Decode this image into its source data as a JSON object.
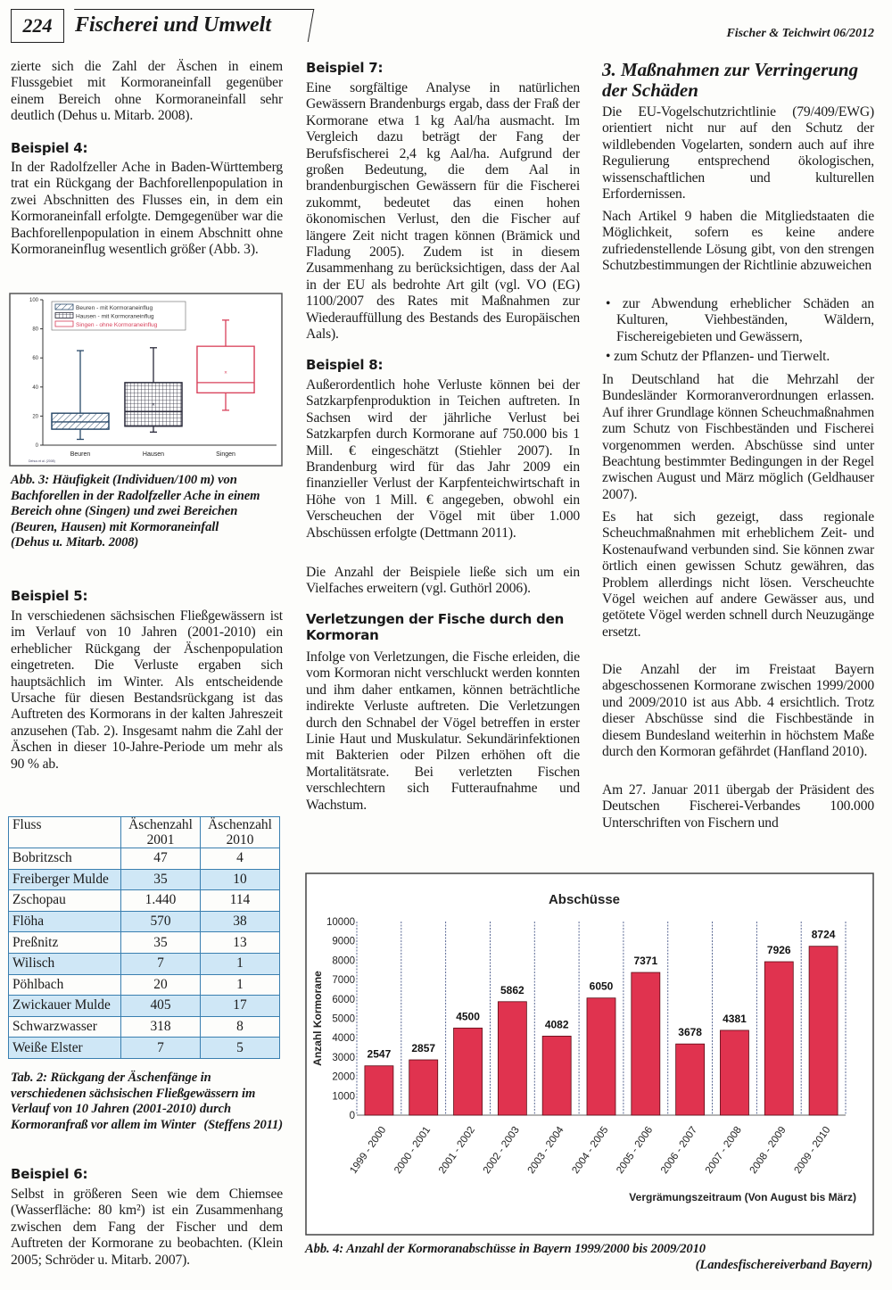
{
  "header": {
    "page_number": "224",
    "section": "Fischerei und Umwelt",
    "journal": "Fischer & Teichwirt 06/2012"
  },
  "col1": {
    "p1": "zierte sich die Zahl der Äschen in einem Flussgebiet mit Kormoraneinfall gegenüber einem Bereich ohne Kormoraneinfall sehr deutlich (Dehus u. Mitarb. 2008).",
    "h4": "Beispiel 4:",
    "p4": "In der Radolfzeller Ache in Baden-Württemberg trat ein Rückgang der Bachforellenpopulation in zwei Abschnitten des Flusses ein, in dem ein Kormoraneinfall erfolgte. Demgegenüber war die Bachforellenpopulation in einem Abschnitt ohne Kormoraneinflug wesentlich größer (Abb. 3).",
    "fig3_caption": "Abb. 3: Häufigkeit (Individuen/100 m) von Bachforellen in der Radolfzeller Ache in einem Bereich ohne (Singen) und zwei Bereichen (Beuren, Hausen) mit Kormoraneinfall",
    "fig3_source": "(Dehus u. Mitarb. 2008)",
    "h5": "Beispiel 5:",
    "p5": "In verschiedenen sächsischen Fließgewässern ist im Verlauf von 10 Jahren (2001-2010) ein erheblicher Rückgang der Äschenpopulation eingetreten. Die Verluste ergaben sich hauptsächlich im Winter. Als entscheidende Ursache für diesen Bestandsrückgang ist das Auftreten des Kormorans in der kalten Jahreszeit anzusehen (Tab. 2). Insgesamt nahm die Zahl der Äschen in dieser 10-Jahre-Periode um mehr als 90 % ab.",
    "tab2_caption": "Tab. 2: Rückgang der Äschenfänge in verschiedenen sächsischen Fließgewässern im Verlauf von 10 Jahren (2001-2010) durch Kormoranfraß vor allem im Winter",
    "tab2_source": "(Steffens 2011)",
    "h6": "Beispiel 6:",
    "p6": "Selbst in größeren Seen wie dem Chiemsee (Wasserfläche: 80 km²) ist ein Zusammenhang zwischen dem Fang der Fischer und dem Auftreten der Kormorane zu beobachten. (Klein 2005; Schröder u. Mitarb. 2007)."
  },
  "table": {
    "headers": [
      "Fluss",
      "Äschenzahl 2001",
      "Äschenzahl 2010"
    ],
    "rows": [
      [
        "Bobritzsch",
        "47",
        "4"
      ],
      [
        "Freiberger Mulde",
        "35",
        "10"
      ],
      [
        "Zschopau",
        "1.440",
        "114"
      ],
      [
        "Flöha",
        "570",
        "38"
      ],
      [
        "Preßnitz",
        "35",
        "13"
      ],
      [
        "Wilisch",
        "7",
        "1"
      ],
      [
        "Pöhlbach",
        "20",
        "1"
      ],
      [
        "Zwickauer Mulde",
        "405",
        "17"
      ],
      [
        "Schwarzwasser",
        "318",
        "8"
      ],
      [
        "Weiße Elster",
        "7",
        "5"
      ]
    ],
    "highlight_color": "#cfe7f6"
  },
  "col2": {
    "h7": "Beispiel 7:",
    "p7": "Eine sorgfältige Analyse in natürlichen Gewässern Brandenburgs ergab, dass der Fraß der Kormorane etwa 1 kg Aal/ha ausmacht. Im Vergleich dazu beträgt der Fang der Berufsfischerei 2,4 kg Aal/ha. Aufgrund der großen Bedeutung, die dem Aal in brandenburgischen Gewässern für die Fischerei zukommt, bedeutet das einen hohen ökonomischen Verlust, den die Fischer auf längere Zeit nicht tragen können (Brämick und Fladung 2005). Zudem ist in diesem Zusammenhang zu berücksichtigen, dass der Aal in der EU als bedrohte Art gilt (vgl. VO (EG) 1100/2007 des Rates mit Maßnahmen zur Wiederauffüllung des Bestands des Europäischen Aals).",
    "h8": "Beispiel 8:",
    "p8": "Außerordentlich hohe Verluste können bei der Satzkarpfenproduktion in Teichen auftreten. In Sachsen wird der jährliche Verlust bei Satzkarpfen durch Kormorane auf 750.000 bis 1 Mill. € eingeschätzt (Stiehler 2007). In Brandenburg wird für das Jahr 2009 ein finanzieller Verlust der Karpfenteichwirtschaft in Höhe von 1 Mill. € angegeben, obwohl ein Verscheuchen der Vögel mit über 1.000 Abschüssen erfolgte (Dettmann 2011).",
    "p8b": "Die Anzahl der Beispiele ließe sich um ein Vielfaches erweitern (vgl. Guthörl 2006).",
    "h_injuries": "Verletzungen der Fische durch den Kormoran",
    "p_injuries": "Infolge von Verletzungen, die Fische erleiden, die vom Kormoran nicht verschluckt werden konnten und ihm daher entkamen, können beträchtliche indirekte Verluste auftreten. Die Verletzungen durch den Schnabel der Vögel betreffen in erster Linie Haut und Muskulatur. Sekundärinfektionen mit Bakterien oder Pilzen erhöhen oft die Mortalitätsrate. Bei verletzten Fischen verschlechtern sich Futteraufnahme und Wachstum."
  },
  "col3": {
    "heading": "3. Maßnahmen zur Verringerung der Schäden",
    "p1": "Die EU-Vogelschutzrichtlinie (79/409/EWG) orientiert nicht nur auf den Schutz der wildlebenden Vogelarten, sondern auch auf ihre Regulierung entsprechend ökologischen, wissenschaftlichen und kulturellen Erfordernissen.",
    "p2": "Nach Artikel 9 haben die Mitgliedstaaten die Möglichkeit, sofern es keine andere zufriedenstellende Lösung gibt, von den strengen Schutzbestimmungen der Richtlinie abzuweichen",
    "bullets": [
      "zur Abwendung erheblicher Schäden an Kulturen, Viehbeständen, Wäldern, Fischereigebieten und Gewässern,",
      "zum Schutz der Pflanzen- und Tierwelt."
    ],
    "p3": "In Deutschland hat die Mehrzahl der Bundesländer Kormoranverordnungen erlassen. Auf ihrer Grundlage können Scheuchmaßnahmen zum Schutz von Fischbeständen und Fischerei vorgenommen werden. Abschüsse sind unter Beachtung bestimmter Bedingungen in der Regel zwischen August und März möglich (Geldhauser 2007).",
    "p4": "Es hat sich gezeigt, dass regionale Scheuchmaßnahmen mit erheblichem Zeit- und Kostenaufwand verbunden sind. Sie können zwar örtlich einen gewissen Schutz gewähren, das Problem allerdings nicht lösen. Verscheuchte Vögel weichen auf andere Gewässer aus, und getötete Vögel werden schnell durch Neuzugänge ersetzt.",
    "p5": "Die Anzahl der im Freistaat Bayern abgeschossenen Kormorane zwischen 1999/2000 und 2009/2010 ist aus Abb. 4 ersichtlich. Trotz dieser Abschüsse sind die Fischbestände in diesem Bundesland weiterhin in höchstem Maße durch den Kormoran gefährdet (Hanfland 2010).",
    "p6": "Am 27. Januar 2011 übergab der Präsident des Deutschen Fischerei-Verbandes 100.000 Unterschriften von Fischern und"
  },
  "fig4": {
    "caption": "Abb. 4: Anzahl der Kormoranabschüsse in Bayern 1999/2000 bis 2009/2010",
    "source": "(Landesfischereiverband Bayern)"
  },
  "chart_data": [
    {
      "type": "box",
      "categories": [
        "Beuren",
        "Hausen",
        "Singen"
      ],
      "legend": [
        "Beuren - mit Kormoraneinflug",
        "Hausen - mit Kormoraneinflug",
        "Singen - ohne Kormoraneinflug"
      ],
      "legend_placement": "top-left",
      "boxes": [
        {
          "min": 4,
          "q1": 11,
          "median": 16,
          "q3": 22,
          "max": 65,
          "mean": 20
        },
        {
          "min": 9,
          "q1": 13,
          "median": 23,
          "q3": 43,
          "max": 67,
          "mean": 28
        },
        {
          "min": 24,
          "q1": 36,
          "median": 43,
          "q3": 68,
          "max": 86,
          "mean": 50
        }
      ],
      "ylim": [
        0,
        100
      ],
      "yticks": [
        0,
        20,
        40,
        60,
        80,
        100
      ],
      "source_note": "Dehus et al. (2008)",
      "colors": [
        "#2a4a6a",
        "#2a2a3a",
        "#d8405a"
      ]
    },
    {
      "type": "bar",
      "title": "Abschüsse",
      "ylabel": "Anzahl Kormorane",
      "xlabel": "Vergrämungszeitraum (Von August bis März)",
      "categories": [
        "1999 - 2000",
        "2000 - 2001",
        "2001 - 2002",
        "2002 - 2003",
        "2003 - 2004",
        "2004 - 2005",
        "2005 - 2006",
        "2006 - 2007",
        "2007 - 2008",
        "2008 - 2009",
        "2009 - 2010"
      ],
      "values": [
        2547,
        2857,
        4500,
        5862,
        4082,
        6050,
        7371,
        3678,
        4381,
        7926,
        8724
      ],
      "ylim": [
        0,
        10000
      ],
      "yticks": [
        0,
        1000,
        2000,
        3000,
        4000,
        5000,
        6000,
        7000,
        8000,
        9000,
        10000
      ],
      "bar_color": "#e0334f",
      "grid": "vertical dashed separators"
    }
  ]
}
